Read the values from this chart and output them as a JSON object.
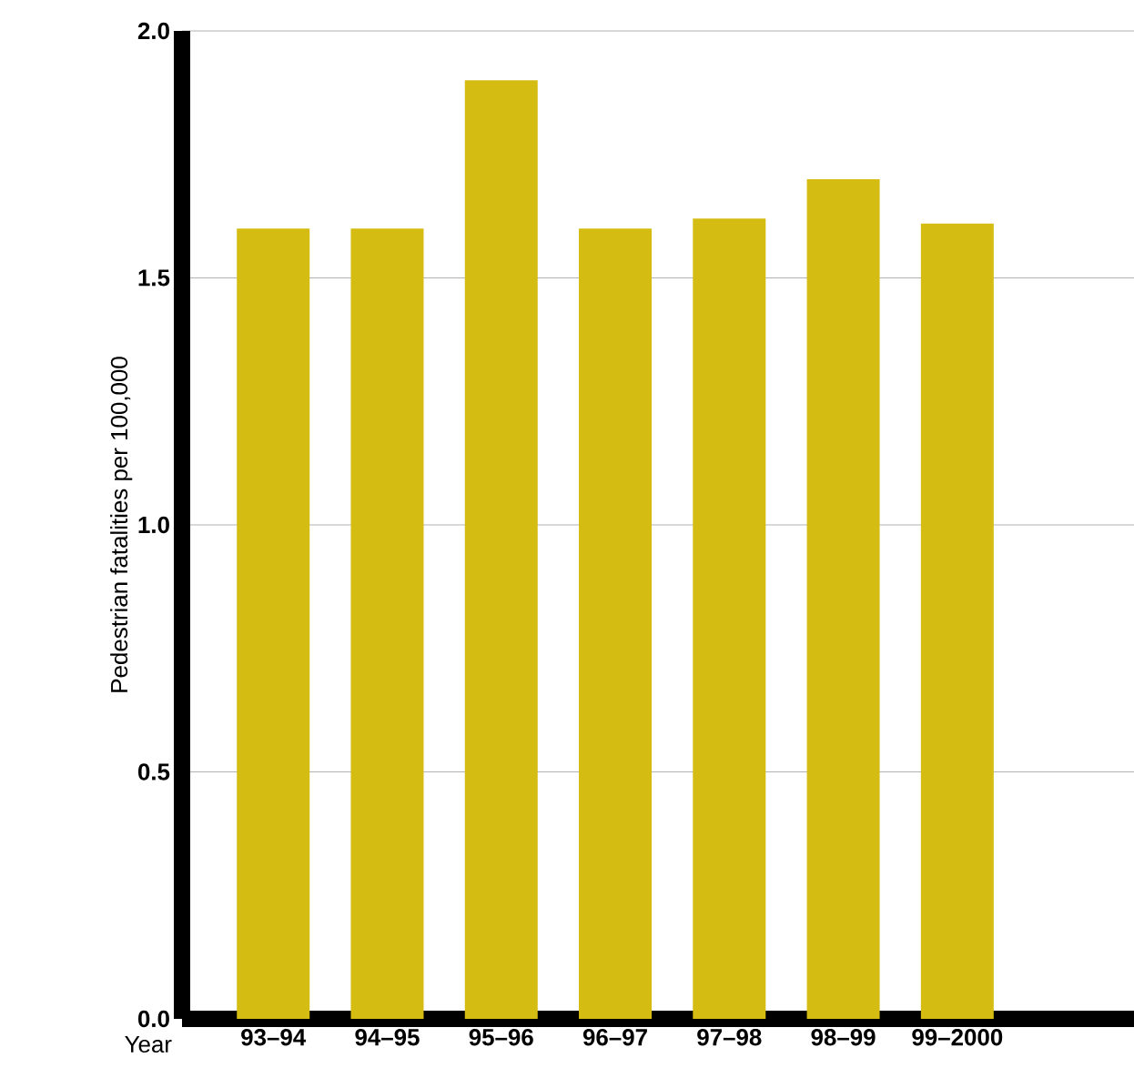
{
  "chart_data": {
    "type": "bar",
    "xlabel": "Year",
    "ylabel": "Pedestrian  fatalities per 100,000",
    "categories": [
      "93–94",
      "94–95",
      "95–96",
      "96–97",
      "97–98",
      "98–99",
      "99–2000"
    ],
    "values": [
      1.6,
      1.6,
      1.9,
      1.6,
      1.62,
      1.7,
      1.61
    ],
    "color": "#d4bc12",
    "ylim": [
      0,
      2
    ],
    "yticks": [
      {
        "value": 0,
        "label": "0.0"
      },
      {
        "value": 0.5,
        "label": "0.5"
      },
      {
        "value": 1,
        "label": "1.0"
      },
      {
        "value": 1.5,
        "label": "1.5"
      },
      {
        "value": 2,
        "label": "2.0"
      }
    ],
    "grid": "y"
  }
}
